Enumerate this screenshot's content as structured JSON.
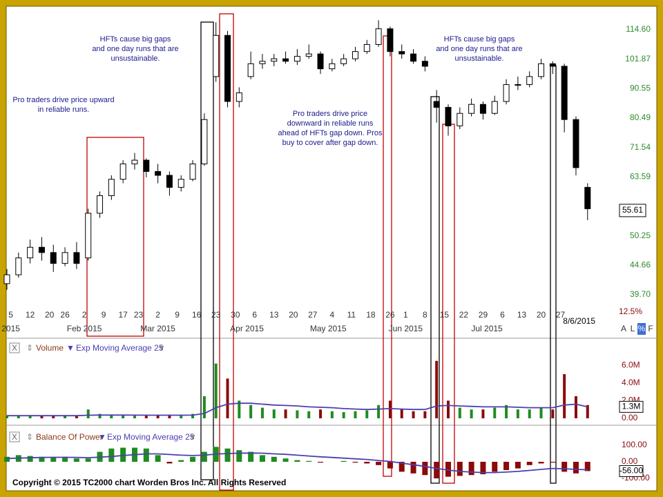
{
  "chart_data": [
    {
      "type": "candlestick",
      "x": [
        0,
        3,
        6,
        9,
        12,
        15,
        18,
        21,
        24,
        27,
        30,
        33,
        36,
        39,
        42,
        45,
        48,
        51,
        54,
        57,
        60,
        63,
        66,
        69,
        72,
        75,
        78,
        81,
        84,
        87,
        90,
        93,
        96,
        99,
        102,
        105,
        108,
        111,
        114,
        117,
        120,
        123,
        126,
        129,
        132,
        135,
        138,
        141,
        144,
        147,
        150
      ],
      "open": [
        41.5,
        43,
        46,
        48,
        47,
        45,
        47,
        46,
        55,
        59,
        63,
        67,
        68,
        65,
        64,
        61,
        63,
        67,
        95,
        112,
        86,
        95,
        100,
        101,
        102,
        101,
        103,
        104,
        98,
        100,
        102,
        105,
        108,
        115,
        105,
        104,
        101,
        86,
        84,
        78,
        82,
        85,
        82,
        86,
        92,
        92,
        95,
        100,
        99,
        80,
        61
      ],
      "high": [
        44,
        47,
        49.5,
        50,
        48.5,
        48,
        49,
        56,
        60,
        64,
        68,
        70,
        68.5,
        67,
        65,
        64,
        68,
        82,
        118,
        114,
        91,
        105,
        104,
        104,
        105,
        106,
        108,
        105,
        102,
        104,
        107,
        110,
        119,
        116,
        108,
        106,
        103,
        90,
        85,
        84,
        87,
        86,
        88,
        94,
        95,
        97,
        102,
        101,
        100,
        81,
        62
      ],
      "low": [
        40.5,
        42.5,
        45,
        45.5,
        43.5,
        44.5,
        44,
        45.5,
        54,
        58,
        62,
        65.5,
        63.5,
        62,
        59,
        60,
        62.5,
        66.5,
        93,
        84,
        84,
        94,
        98,
        99,
        100,
        99.5,
        102,
        96,
        97,
        99,
        101,
        104,
        107,
        103,
        102,
        100,
        97,
        79,
        75,
        77,
        81,
        80,
        81.5,
        85,
        90,
        91,
        94,
        96,
        76,
        64,
        53.5
      ],
      "close": [
        43,
        46,
        48,
        47,
        45,
        47,
        45,
        55,
        59,
        63,
        67,
        68,
        65,
        64,
        61,
        63,
        67,
        80,
        112,
        86,
        89,
        100,
        101,
        102,
        101,
        103,
        104,
        98,
        100,
        102,
        105,
        108,
        115,
        105,
        104,
        101,
        99,
        84,
        78,
        82,
        85,
        82,
        86,
        92,
        92,
        95,
        100,
        99,
        80,
        66,
        56
      ],
      "up_color": "#ffffff",
      "down_color": "#000000",
      "log_scale": true,
      "ylim": [
        38.3,
        122.1
      ],
      "yticks": [
        {
          "value": 39.7,
          "label": "39.70"
        },
        44.66,
        50.25,
        63.59,
        71.54,
        80.49,
        90.55,
        101.87,
        {
          "value": 114.6,
          "label": "114.60"
        }
      ],
      "xlim": [
        0,
        152
      ],
      "xticks": [
        {
          "value": 1,
          "label": "5"
        },
        {
          "value": 6,
          "label": "12"
        },
        {
          "value": 11,
          "label": "20"
        },
        {
          "value": 15,
          "label": "26"
        },
        {
          "value": 20,
          "label": "2"
        },
        {
          "value": 25,
          "label": "9"
        },
        {
          "value": 30,
          "label": "17"
        },
        {
          "value": 34,
          "label": "23"
        },
        {
          "value": 39,
          "label": "2"
        },
        {
          "value": 44,
          "label": "9"
        },
        {
          "value": 49,
          "label": "16"
        },
        {
          "value": 54,
          "label": "23"
        },
        {
          "value": 59,
          "label": "30"
        },
        {
          "value": 64,
          "label": "6"
        },
        {
          "value": 69,
          "label": "13"
        },
        {
          "value": 74,
          "label": "20"
        },
        {
          "value": 79,
          "label": "27"
        },
        {
          "value": 84,
          "label": "4"
        },
        {
          "value": 89,
          "label": "11"
        },
        {
          "value": 94,
          "label": "18"
        },
        {
          "value": 99,
          "label": "26"
        },
        {
          "value": 103,
          "label": "1"
        },
        {
          "value": 108,
          "label": "8"
        },
        {
          "value": 113,
          "label": "15"
        },
        {
          "value": 118,
          "label": "22"
        },
        {
          "value": 123,
          "label": "29"
        },
        {
          "value": 128,
          "label": "6"
        },
        {
          "value": 133,
          "label": "13"
        },
        {
          "value": 138,
          "label": "20"
        },
        {
          "value": 143,
          "label": "27"
        }
      ],
      "month_ticks": [
        {
          "value": 1,
          "label": "2015"
        },
        {
          "value": 20,
          "label": "Feb 2015"
        },
        {
          "value": 39,
          "label": "Mar 2015"
        },
        {
          "value": 62,
          "label": "Apr 2015"
        },
        {
          "value": 83,
          "label": "May 2015"
        },
        {
          "value": 103,
          "label": "Jun 2015"
        },
        {
          "value": 124,
          "label": "Jul 2015"
        }
      ],
      "last_price": 55.61,
      "date_label": "8/6/2015",
      "scale_label": "12.5%",
      "controls": [
        "A",
        "L",
        "%",
        "F"
      ],
      "annotations": [
        {
          "lines": [
            "Pro traders drive price upward",
            "in reliable runs."
          ]
        },
        {
          "lines": [
            "HFTs cause big gaps",
            "and one day runs that are",
            "unsustainable."
          ]
        },
        {
          "lines": [
            "Pro traders drive price",
            "downward in reliable runs",
            "ahead of HFTs gap down. Pros",
            "buy to cover after gap down."
          ]
        },
        {
          "lines": [
            "HFTs cause big gaps",
            "and one day runs that are",
            "unsustainable."
          ]
        }
      ]
    },
    {
      "type": "bar",
      "up_color": "#1e8c1e",
      "down_color": "#8b0a0a",
      "series": [
        {
          "name": "Volume",
          "color": "#8b3a1a",
          "values": [
            300000,
            300000,
            350000,
            300000,
            300000,
            300000,
            300000,
            1000000,
            500000,
            400000,
            400000,
            300000,
            300000,
            350000,
            400000,
            300000,
            500000,
            2500000,
            6200000,
            4500000,
            2000000,
            1500000,
            1200000,
            1000000,
            1000000,
            900000,
            800000,
            1000000,
            800000,
            700000,
            800000,
            900000,
            1500000,
            2000000,
            1000000,
            800000,
            800000,
            6500000,
            2000000,
            1200000,
            1000000,
            1000000,
            1200000,
            1500000,
            1000000,
            1000000,
            1200000,
            1000000,
            5000000,
            2500000,
            1500000
          ]
        },
        {
          "name": "Exp Moving Average 25",
          "type": "line",
          "color": "#4a3fb0",
          "values": [
            300000,
            300000,
            300000,
            300000,
            300000,
            300000,
            300000,
            350000,
            370000,
            370000,
            370000,
            360000,
            350000,
            350000,
            350000,
            350000,
            360000,
            550000,
            1200000,
            1600000,
            1700000,
            1700000,
            1600000,
            1500000,
            1450000,
            1400000,
            1300000,
            1250000,
            1200000,
            1100000,
            1050000,
            1000000,
            1050000,
            1100000,
            1050000,
            1000000,
            1000000,
            1400000,
            1450000,
            1400000,
            1350000,
            1300000,
            1300000,
            1300000,
            1250000,
            1200000,
            1200000,
            1200000,
            1500000,
            1600000,
            1300000
          ]
        }
      ],
      "ylim": [
        0,
        7500000
      ],
      "yticks": [
        {
          "value": 0,
          "label": "0.00"
        },
        {
          "value": 2000000,
          "label": "2.0M"
        },
        {
          "value": 4000000,
          "label": "4.0M"
        },
        {
          "value": 6000000,
          "label": "6.0M"
        }
      ],
      "last_label": {
        "value": 1300000,
        "label": "1.3M"
      }
    },
    {
      "type": "bar",
      "up_color": "#1e8c1e",
      "down_color": "#8b0a0a",
      "series": [
        {
          "name": "Balance Of Power",
          "color": "#8b3a1a",
          "values": [
            30,
            40,
            35,
            30,
            25,
            30,
            20,
            20,
            60,
            80,
            85,
            85,
            80,
            40,
            -10,
            10,
            30,
            60,
            90,
            80,
            70,
            60,
            40,
            30,
            20,
            10,
            5,
            -5,
            0,
            5,
            -5,
            -10,
            -20,
            -40,
            -60,
            -70,
            -80,
            -100,
            -90,
            -85,
            -80,
            -75,
            -60,
            -50,
            -40,
            -20,
            -10,
            -5,
            -60,
            -70,
            -56
          ]
        },
        {
          "name": "Exp Moving Average 25",
          "type": "line",
          "color": "#4a3fb0",
          "values": [
            20,
            22,
            24,
            26,
            27,
            27,
            26,
            25,
            28,
            32,
            38,
            43,
            48,
            48,
            44,
            40,
            38,
            40,
            46,
            50,
            52,
            53,
            52,
            48,
            45,
            40,
            35,
            30,
            26,
            22,
            18,
            14,
            8,
            2,
            -8,
            -18,
            -28,
            -40,
            -50,
            -58,
            -62,
            -65,
            -65,
            -62,
            -58,
            -52,
            -46,
            -40,
            -42,
            -46,
            -48
          ]
        }
      ],
      "ylim": [
        -129,
        183
      ],
      "yticks": [
        {
          "value": -100,
          "label": "-100.00"
        },
        {
          "value": 0,
          "label": "0.00"
        },
        {
          "value": 100,
          "label": "100.00"
        }
      ],
      "last_label": {
        "value": -56,
        "label": "-56.00"
      }
    }
  ],
  "copyright": "Copyright  © 2015 TC2000  chart  Worden Bros Inc. All Rights Reserved"
}
